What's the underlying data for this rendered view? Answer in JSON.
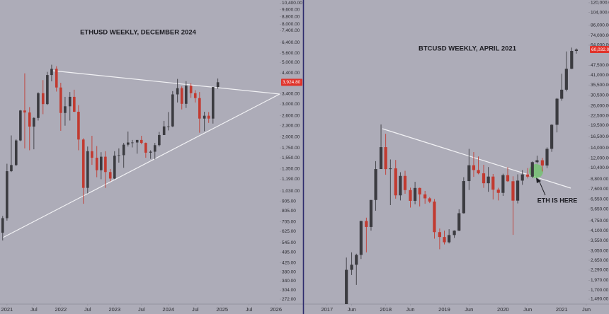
{
  "chart_data": [
    {
      "type": "candlestick",
      "title": "ETHUSD WEEKLY, DECEMBER 2024",
      "log_scale": true,
      "grid": false,
      "up_color": "#3b3b40",
      "down_color": "#c23a30",
      "x": [
        2020.92,
        2021.0,
        2021.08,
        2021.17,
        2021.25,
        2021.33,
        2021.42,
        2021.5,
        2021.58,
        2021.67,
        2021.75,
        2021.83,
        2021.92,
        2022.0,
        2022.08,
        2022.17,
        2022.25,
        2022.33,
        2022.42,
        2022.5,
        2022.58,
        2022.67,
        2022.75,
        2022.83,
        2022.92,
        2023.0,
        2023.08,
        2023.17,
        2023.25,
        2023.33,
        2023.42,
        2023.5,
        2023.58,
        2023.67,
        2023.75,
        2023.83,
        2023.92,
        2024.0,
        2024.08,
        2024.17,
        2024.25,
        2024.33,
        2024.42,
        2024.5,
        2024.58,
        2024.67,
        2024.75,
        2024.83,
        2024.92
      ],
      "open": [
        616,
        737,
        1314,
        1417,
        1918,
        2773,
        2706,
        2275,
        2530,
        3430,
        3000,
        4290,
        4630,
        3680,
        2690,
        2920,
        3280,
        2730,
        1940,
        1070,
        1680,
        1550,
        1330,
        1570,
        1300,
        1200,
        1590,
        1600,
        1820,
        1870,
        1870,
        1930,
        1860,
        1650,
        1670,
        1810,
        2050,
        2280,
        2280,
        3380,
        3650,
        3010,
        3760,
        3430,
        3230,
        2510,
        2600,
        2510,
        3700
      ],
      "high": [
        757,
        1440,
        2040,
        1945,
        2790,
        4380,
        2890,
        2550,
        3470,
        4030,
        4460,
        4870,
        4780,
        3900,
        3280,
        3480,
        3580,
        2960,
        1970,
        1780,
        2030,
        1790,
        1660,
        1680,
        1350,
        1680,
        1740,
        1860,
        2140,
        1930,
        1930,
        2030,
        1870,
        1700,
        1860,
        2130,
        2440,
        2720,
        3520,
        4090,
        3730,
        3980,
        3880,
        3560,
        3480,
        2730,
        2720,
        3680,
        4110
      ],
      "low": [
        560,
        715,
        1300,
        1400,
        1900,
        1740,
        1700,
        1720,
        2450,
        2650,
        2970,
        3970,
        3500,
        2160,
        2300,
        2450,
        2720,
        1700,
        880,
        1000,
        1420,
        1220,
        1190,
        1070,
        1160,
        1190,
        1460,
        1370,
        1780,
        1760,
        1630,
        1830,
        1550,
        1530,
        1520,
        1780,
        2050,
        2170,
        2260,
        3060,
        2810,
        2860,
        3240,
        3060,
        2110,
        2150,
        2380,
        2360,
        3620
      ],
      "close": [
        737,
        1314,
        1417,
        1918,
        2773,
        2706,
        2275,
        2530,
        3430,
        3000,
        4290,
        4630,
        3680,
        2690,
        2920,
        3280,
        2730,
        1940,
        1070,
        1680,
        1550,
        1330,
        1570,
        1300,
        1200,
        1590,
        1600,
        1820,
        1870,
        1870,
        1930,
        1860,
        1650,
        1670,
        1810,
        2050,
        2280,
        2280,
        3380,
        3650,
        3010,
        3760,
        3430,
        3230,
        2510,
        2600,
        2510,
        3700,
        3925
      ],
      "xlim": [
        2020.87,
        2026.07
      ],
      "ylim": [
        256,
        10800
      ],
      "xticks": [
        {
          "value": 2021,
          "label": "2021"
        },
        {
          "value": 2021.5,
          "label": "Jul"
        },
        {
          "value": 2022,
          "label": "2022"
        },
        {
          "value": 2022.5,
          "label": "Jul"
        },
        {
          "value": 2023,
          "label": "2023"
        },
        {
          "value": 2023.5,
          "label": "Jul"
        },
        {
          "value": 2024,
          "label": "2024"
        },
        {
          "value": 2024.5,
          "label": "Jul"
        },
        {
          "value": 2025,
          "label": "2025"
        },
        {
          "value": 2025.5,
          "label": "Jul"
        },
        {
          "value": 2026,
          "label": "2026"
        }
      ],
      "yticks": [
        {
          "value": 10400,
          "label": "10,400.00"
        },
        {
          "value": 9600,
          "label": "9,600.00"
        },
        {
          "value": 8800,
          "label": "8,800.00"
        },
        {
          "value": 8000,
          "label": "8,000.00"
        },
        {
          "value": 7400,
          "label": "7,400.00"
        },
        {
          "value": 6400,
          "label": "6,400.00"
        },
        {
          "value": 5600,
          "label": "5,600.00"
        },
        {
          "value": 5000,
          "label": "5,000.00"
        },
        {
          "value": 4400,
          "label": "4,400.00"
        },
        {
          "value": 3400,
          "label": "3,400.00"
        },
        {
          "value": 3000,
          "label": "3,000.00"
        },
        {
          "value": 2600,
          "label": "2,600.00"
        },
        {
          "value": 2300,
          "label": "2,300.00"
        },
        {
          "value": 2000,
          "label": "2,000.00"
        },
        {
          "value": 1750,
          "label": "1,750.00"
        },
        {
          "value": 1550,
          "label": "1,550.00"
        },
        {
          "value": 1350,
          "label": "1,350.00"
        },
        {
          "value": 1190,
          "label": "1,190.00"
        },
        {
          "value": 1030,
          "label": "1,030.00"
        },
        {
          "value": 905,
          "label": "905.00"
        },
        {
          "value": 805,
          "label": "805.00"
        },
        {
          "value": 705,
          "label": "705.00"
        },
        {
          "value": 625,
          "label": "625.00"
        },
        {
          "value": 545,
          "label": "545.00"
        },
        {
          "value": 485,
          "label": "485.00"
        },
        {
          "value": 425,
          "label": "425.00"
        },
        {
          "value": 380,
          "label": "380.00"
        },
        {
          "value": 340,
          "label": "340.00"
        },
        {
          "value": 304,
          "label": "304.00"
        },
        {
          "value": 272,
          "label": "272.00"
        }
      ],
      "last_price": {
        "value": 3924.8,
        "label": "3,924.80"
      }
    },
    {
      "type": "candlestick",
      "title": "BTCUSD WEEKLY, APRIL 2021",
      "log_scale": true,
      "grid": false,
      "up_color": "#3b3b40",
      "down_color": "#c23a30",
      "annotation": "ETH IS HERE",
      "x": [
        2017.33,
        2017.42,
        2017.5,
        2017.58,
        2017.67,
        2017.75,
        2017.83,
        2017.92,
        2018.0,
        2018.08,
        2018.17,
        2018.25,
        2018.33,
        2018.42,
        2018.5,
        2018.58,
        2018.67,
        2018.75,
        2018.83,
        2018.92,
        2019.0,
        2019.08,
        2019.17,
        2019.25,
        2019.33,
        2019.42,
        2019.5,
        2019.58,
        2019.67,
        2019.75,
        2019.83,
        2019.92,
        2020.0,
        2020.08,
        2020.17,
        2020.25,
        2020.33,
        2020.42,
        2020.5,
        2020.58,
        2020.67,
        2020.75,
        2020.83,
        2020.92,
        2021.0,
        2021.08,
        2021.17,
        2021.25
      ],
      "open": [
        1350,
        2300,
        2480,
        2870,
        4740,
        4340,
        6470,
        10230,
        14150,
        10220,
        10330,
        6930,
        9240,
        7490,
        6390,
        7730,
        7030,
        6630,
        6320,
        4020,
        3740,
        3460,
        3850,
        4110,
        5320,
        8560,
        10820,
        10080,
        9600,
        8290,
        9150,
        7540,
        7190,
        9350,
        8540,
        6410,
        8620,
        9450,
        9140,
        11330,
        11650,
        10780,
        13800,
        19700,
        28990,
        33110,
        45140,
        58800
      ],
      "high": [
        2760,
        2980,
        2920,
        4760,
        4980,
        6470,
        11500,
        19800,
        17250,
        11790,
        11700,
        9760,
        9970,
        7760,
        8470,
        7770,
        7400,
        6750,
        6560,
        4240,
        4110,
        4200,
        4130,
        5640,
        9070,
        13800,
        13150,
        12320,
        10900,
        10540,
        9510,
        7750,
        9550,
        10500,
        9190,
        9460,
        10070,
        10380,
        11450,
        12470,
        12080,
        14100,
        19860,
        29300,
        41950,
        58350,
        61780,
        61000
      ],
      "low": [
        1350,
        2130,
        1840,
        2700,
        2980,
        4110,
        5520,
        10230,
        9400,
        6000,
        6600,
        6430,
        7090,
        5780,
        6070,
        5880,
        6120,
        6180,
        3650,
        3120,
        3350,
        3400,
        3690,
        4080,
        5290,
        7500,
        9110,
        9470,
        7740,
        7300,
        6520,
        6430,
        6870,
        8450,
        3860,
        6150,
        8100,
        8900,
        8970,
        11120,
        9880,
        10370,
        13200,
        17600,
        28130,
        32300,
        44960,
        56500
      ],
      "close": [
        2300,
        2480,
        2870,
        4740,
        4340,
        6470,
        10230,
        14150,
        10220,
        10330,
        6930,
        9240,
        7490,
        6390,
        7730,
        7030,
        6630,
        6320,
        4020,
        3740,
        3460,
        3850,
        4110,
        5320,
        8560,
        10820,
        10080,
        9600,
        8290,
        9150,
        7540,
        7190,
        9350,
        8540,
        6410,
        8620,
        9450,
        9140,
        11330,
        11650,
        10780,
        13800,
        19700,
        28990,
        33110,
        45140,
        58800,
        60030
      ],
      "xlim": [
        2016.64,
        2021.42
      ],
      "ylim": [
        1385,
        125000
      ],
      "xticks": [
        {
          "value": 2017,
          "label": "2017"
        },
        {
          "value": 2017.42,
          "label": "Jun"
        },
        {
          "value": 2018,
          "label": "2018"
        },
        {
          "value": 2018.42,
          "label": "Jun"
        },
        {
          "value": 2019,
          "label": "2019"
        },
        {
          "value": 2019.42,
          "label": "Jun"
        },
        {
          "value": 2020,
          "label": "2020"
        },
        {
          "value": 2020.42,
          "label": "Jun"
        },
        {
          "value": 2021,
          "label": "2021"
        },
        {
          "value": 2021.42,
          "label": "Jun"
        }
      ],
      "yticks": [
        {
          "value": 120000,
          "label": "120,000.00"
        },
        {
          "value": 104000,
          "label": "104,000.00"
        },
        {
          "value": 86000,
          "label": "86,000.00"
        },
        {
          "value": 74000,
          "label": "74,000.00"
        },
        {
          "value": 64000,
          "label": "64,000.00"
        },
        {
          "value": 47500,
          "label": "47,500.00"
        },
        {
          "value": 41000,
          "label": "41,000.00"
        },
        {
          "value": 35500,
          "label": "35,500.00"
        },
        {
          "value": 30500,
          "label": "30,500.00"
        },
        {
          "value": 26000,
          "label": "26,000.00"
        },
        {
          "value": 22500,
          "label": "22,500.00"
        },
        {
          "value": 19500,
          "label": "19,500.00"
        },
        {
          "value": 16500,
          "label": "16,500.00"
        },
        {
          "value": 14000,
          "label": "14,000.00"
        },
        {
          "value": 12000,
          "label": "12,000.00"
        },
        {
          "value": 10400,
          "label": "10,400.00"
        },
        {
          "value": 8800,
          "label": "8,800.00"
        },
        {
          "value": 7600,
          "label": "7,600.00"
        },
        {
          "value": 6550,
          "label": "6,550.00"
        },
        {
          "value": 5650,
          "label": "5,650.00"
        },
        {
          "value": 4750,
          "label": "4,750.00"
        },
        {
          "value": 4100,
          "label": "4,100.00"
        },
        {
          "value": 3550,
          "label": "3,550.00"
        },
        {
          "value": 3050,
          "label": "3,050.00"
        },
        {
          "value": 2650,
          "label": "2,650.00"
        },
        {
          "value": 2290,
          "label": "2,290.00"
        },
        {
          "value": 1970,
          "label": "1,970.00"
        },
        {
          "value": 1700,
          "label": "1,700.00"
        },
        {
          "value": 1490,
          "label": "1,490.00"
        }
      ],
      "last_price": {
        "value": 60032,
        "label": "60,032.00"
      }
    }
  ]
}
